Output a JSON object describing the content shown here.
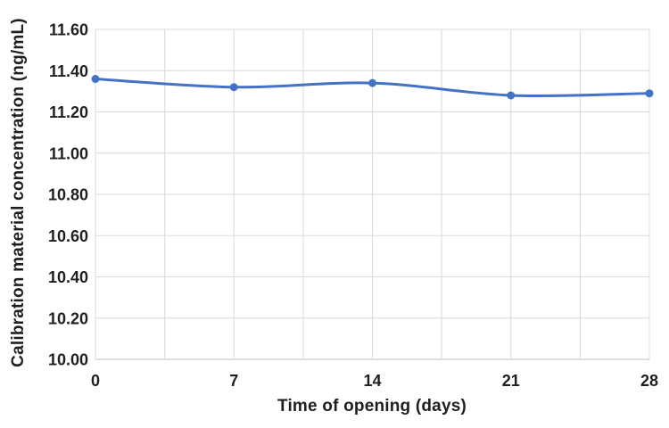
{
  "chart_data": {
    "type": "line",
    "title": "",
    "xlabel": "Time of opening (days)",
    "ylabel": "Calibration material concentration (ng/mL)",
    "x": [
      0,
      7,
      14,
      21,
      28
    ],
    "series": [
      {
        "name": "Calibration material concentration",
        "values": [
          11.36,
          11.32,
          11.34,
          11.28,
          11.29
        ]
      }
    ],
    "xlim": [
      0,
      28
    ],
    "ylim": [
      10.0,
      11.6
    ],
    "xtick_labels": [
      "0",
      "7",
      "14",
      "21",
      "28"
    ],
    "xtick_values": [
      0,
      7,
      14,
      21,
      28
    ],
    "ytick_labels": [
      "10.00",
      "10.20",
      "10.40",
      "10.60",
      "10.80",
      "11.00",
      "11.20",
      "11.40",
      "11.60"
    ],
    "ytick_values": [
      10.0,
      10.2,
      10.4,
      10.6,
      10.8,
      11.0,
      11.2,
      11.4,
      11.6
    ],
    "x_minor_grid_step": 3.5,
    "grid": true,
    "legend_position": "none",
    "smooth_line": true,
    "colors": {
      "line": "#4472C4",
      "marker": "#4472C4",
      "gridline": "#D9D9D9",
      "axis_line": "#BFBFBF",
      "text": "#1f1f1f",
      "background": "#FFFFFF"
    }
  }
}
